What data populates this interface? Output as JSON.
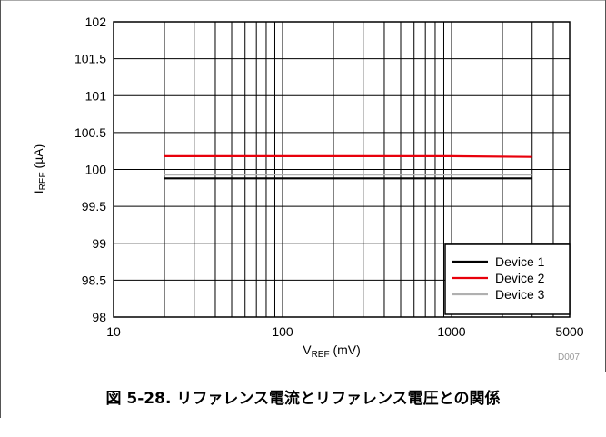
{
  "figure": {
    "id_label": "D007",
    "caption": "図 5-28. リファレンス電流とリファレンス電圧との関係"
  },
  "chart_data": {
    "type": "line",
    "xlabel": {
      "main": "V",
      "sub": "REF",
      "unit": " (mV)"
    },
    "ylabel": {
      "main": "I",
      "sub": "REF",
      "unit": " (µA)"
    },
    "x_scale": "log",
    "xlim": [
      10,
      5000
    ],
    "ylim": [
      98,
      102
    ],
    "x_ticks": [
      10,
      100,
      1000,
      5000
    ],
    "x_tick_labels": [
      "10",
      "100",
      "1000",
      "5000"
    ],
    "y_ticks": [
      98,
      98.5,
      99,
      99.5,
      100,
      100.5,
      101,
      101.5,
      102
    ],
    "y_tick_labels": [
      "98",
      "98.5",
      "99",
      "99.5",
      "100",
      "100.5",
      "101",
      "101.5",
      "102"
    ],
    "x_minor_grid": [
      20,
      30,
      40,
      50,
      60,
      70,
      80,
      90,
      200,
      300,
      400,
      500,
      600,
      700,
      800,
      900,
      2000,
      3000,
      4000
    ],
    "grid": true,
    "legend_position": "bottom-right",
    "series": [
      {
        "name": "Device 1",
        "color": "#000000",
        "x": [
          20,
          100,
          1000,
          3000
        ],
        "y": [
          99.88,
          99.88,
          99.88,
          99.88
        ]
      },
      {
        "name": "Device 2",
        "color": "#e8000b",
        "x": [
          20,
          100,
          1000,
          3000
        ],
        "y": [
          100.18,
          100.18,
          100.18,
          100.17
        ]
      },
      {
        "name": "Device 3",
        "color": "#b0b0b0",
        "x": [
          20,
          100,
          1000,
          3000
        ],
        "y": [
          99.93,
          99.93,
          99.93,
          99.93
        ]
      }
    ]
  }
}
